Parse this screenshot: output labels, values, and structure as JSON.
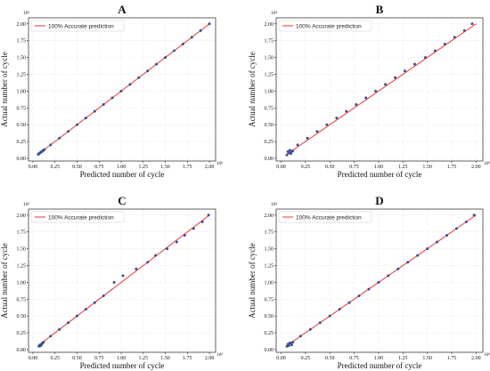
{
  "chart_data": [
    {
      "type": "scatter",
      "title": "A",
      "xlabel": "Predicted number of cycle",
      "ylabel": "Actual number of cycle",
      "x_multiplier_label": "10⁶",
      "y_multiplier_label": "10⁶",
      "xlim": [
        -0.05,
        2.07
      ],
      "ylim": [
        -0.04,
        2.09
      ],
      "xticks": [
        "0.00",
        "0.25",
        "0.50",
        "0.75",
        "1.00",
        "1.25",
        "1.50",
        "1.75",
        "2.00"
      ],
      "yticks": [
        "0.00",
        "0.25",
        "0.50",
        "0.75",
        "1.00",
        "1.25",
        "1.50",
        "1.75",
        "2.00"
      ],
      "grid": true,
      "legend": {
        "position": "top-left",
        "entries": [
          "100% Accurate prediction"
        ]
      },
      "series": [
        {
          "name": "100% Accurate prediction",
          "kind": "line",
          "color": "#e8494a",
          "x": [
            0.05,
            2.0
          ],
          "y": [
            0.05,
            2.0
          ]
        },
        {
          "kind": "scatter",
          "color": "#3b4f8e",
          "x": [
            0.06,
            0.07,
            0.08,
            0.09,
            0.1,
            0.11,
            0.12,
            0.13,
            0.2,
            0.3,
            0.4,
            0.5,
            0.6,
            0.7,
            0.8,
            0.9,
            1.0,
            1.1,
            1.2,
            1.3,
            1.4,
            1.5,
            1.6,
            1.7,
            1.8,
            1.9,
            2.0
          ],
          "y": [
            0.06,
            0.07,
            0.08,
            0.09,
            0.1,
            0.11,
            0.12,
            0.13,
            0.2,
            0.3,
            0.4,
            0.5,
            0.6,
            0.7,
            0.8,
            0.9,
            1.0,
            1.1,
            1.2,
            1.3,
            1.4,
            1.5,
            1.6,
            1.7,
            1.8,
            1.9,
            2.0
          ]
        }
      ]
    },
    {
      "type": "scatter",
      "title": "B",
      "xlabel": "Predicted number of cycle",
      "ylabel": "Actual number of cycle",
      "x_multiplier_label": "10⁶",
      "y_multiplier_label": "10⁶",
      "xlim": [
        -0.05,
        2.07
      ],
      "ylim": [
        -0.04,
        2.09
      ],
      "xticks": [
        "0.00",
        "0.25",
        "0.50",
        "0.75",
        "1.00",
        "1.25",
        "1.50",
        "1.75",
        "2.00"
      ],
      "yticks": [
        "0.00",
        "0.25",
        "0.50",
        "0.75",
        "1.00",
        "1.25",
        "1.50",
        "1.75",
        "2.00"
      ],
      "grid": true,
      "legend": {
        "position": "top-left",
        "entries": [
          "100% Accurate prediction"
        ]
      },
      "series": [
        {
          "name": "100% Accurate prediction",
          "kind": "line",
          "color": "#e8494a",
          "x": [
            0.05,
            2.0
          ],
          "y": [
            0.05,
            2.0
          ]
        },
        {
          "kind": "scatter",
          "color": "#3b4f8e",
          "x": [
            0.06,
            0.07,
            0.08,
            0.09,
            0.1,
            0.11,
            0.12,
            0.17,
            0.27,
            0.37,
            0.47,
            0.57,
            0.67,
            0.77,
            0.87,
            0.97,
            1.07,
            1.17,
            1.27,
            1.37,
            1.48,
            1.58,
            1.68,
            1.78,
            1.88,
            1.96
          ],
          "y": [
            0.05,
            0.1,
            0.08,
            0.12,
            0.07,
            0.1,
            0.11,
            0.2,
            0.3,
            0.4,
            0.5,
            0.6,
            0.7,
            0.8,
            0.9,
            1.0,
            1.1,
            1.2,
            1.3,
            1.4,
            1.5,
            1.6,
            1.7,
            1.8,
            1.9,
            2.0
          ]
        }
      ]
    },
    {
      "type": "scatter",
      "title": "C",
      "xlabel": "Predicted number of cycle",
      "ylabel": "Actual number of cycle",
      "x_multiplier_label": "10⁶",
      "y_multiplier_label": "10⁶",
      "xlim": [
        -0.05,
        2.07
      ],
      "ylim": [
        -0.04,
        2.09
      ],
      "xticks": [
        "0.00",
        "0.25",
        "0.50",
        "0.75",
        "1.00",
        "1.25",
        "1.50",
        "1.75",
        "2.00"
      ],
      "yticks": [
        "0.00",
        "0.25",
        "0.50",
        "0.75",
        "1.00",
        "1.25",
        "1.50",
        "1.75",
        "2.00"
      ],
      "grid": true,
      "legend": {
        "position": "top-left",
        "entries": [
          "100% Accurate prediction"
        ]
      },
      "series": [
        {
          "name": "100% Accurate prediction",
          "kind": "line",
          "color": "#e8494a",
          "x": [
            0.05,
            2.0
          ],
          "y": [
            0.05,
            2.0
          ]
        },
        {
          "kind": "scatter",
          "color": "#3b4f8e",
          "x": [
            0.07,
            0.08,
            0.09,
            0.1,
            0.11,
            0.12,
            0.2,
            0.3,
            0.4,
            0.5,
            0.6,
            0.7,
            0.8,
            0.92,
            1.02,
            1.17,
            1.3,
            1.39,
            1.52,
            1.63,
            1.72,
            1.82,
            1.92,
            1.99
          ],
          "y": [
            0.05,
            0.07,
            0.06,
            0.08,
            0.1,
            0.11,
            0.2,
            0.3,
            0.4,
            0.5,
            0.6,
            0.7,
            0.8,
            1.0,
            1.1,
            1.2,
            1.3,
            1.4,
            1.5,
            1.6,
            1.7,
            1.8,
            1.9,
            2.0
          ]
        }
      ]
    },
    {
      "type": "scatter",
      "title": "D",
      "xlabel": "Predicted number of cycle",
      "ylabel": "Actual number of cycle",
      "x_multiplier_label": "10⁶",
      "y_multiplier_label": "10⁶",
      "xlim": [
        -0.05,
        2.07
      ],
      "ylim": [
        -0.04,
        2.09
      ],
      "xticks": [
        "0.00",
        "0.25",
        "0.50",
        "0.75",
        "1.00",
        "1.25",
        "1.50",
        "1.75",
        "2.00"
      ],
      "yticks": [
        "0.00",
        "0.25",
        "0.50",
        "0.75",
        "1.00",
        "1.25",
        "1.50",
        "1.75",
        "2.00"
      ],
      "grid": true,
      "legend": {
        "position": "top-left",
        "entries": [
          "100% Accurate prediction"
        ]
      },
      "series": [
        {
          "name": "100% Accurate prediction",
          "kind": "line",
          "color": "#e8494a",
          "x": [
            0.05,
            2.0
          ],
          "y": [
            0.05,
            2.0
          ]
        },
        {
          "kind": "scatter",
          "color": "#3b4f8e",
          "x": [
            0.06,
            0.07,
            0.08,
            0.09,
            0.1,
            0.11,
            0.12,
            0.2,
            0.3,
            0.4,
            0.5,
            0.6,
            0.7,
            0.8,
            0.9,
            1.0,
            1.1,
            1.2,
            1.3,
            1.4,
            1.5,
            1.6,
            1.7,
            1.8,
            1.9,
            1.98
          ],
          "y": [
            0.05,
            0.08,
            0.06,
            0.1,
            0.09,
            0.07,
            0.11,
            0.2,
            0.3,
            0.4,
            0.5,
            0.6,
            0.7,
            0.8,
            0.9,
            1.0,
            1.1,
            1.2,
            1.3,
            1.4,
            1.5,
            1.6,
            1.7,
            1.8,
            1.9,
            2.0
          ]
        }
      ]
    }
  ]
}
